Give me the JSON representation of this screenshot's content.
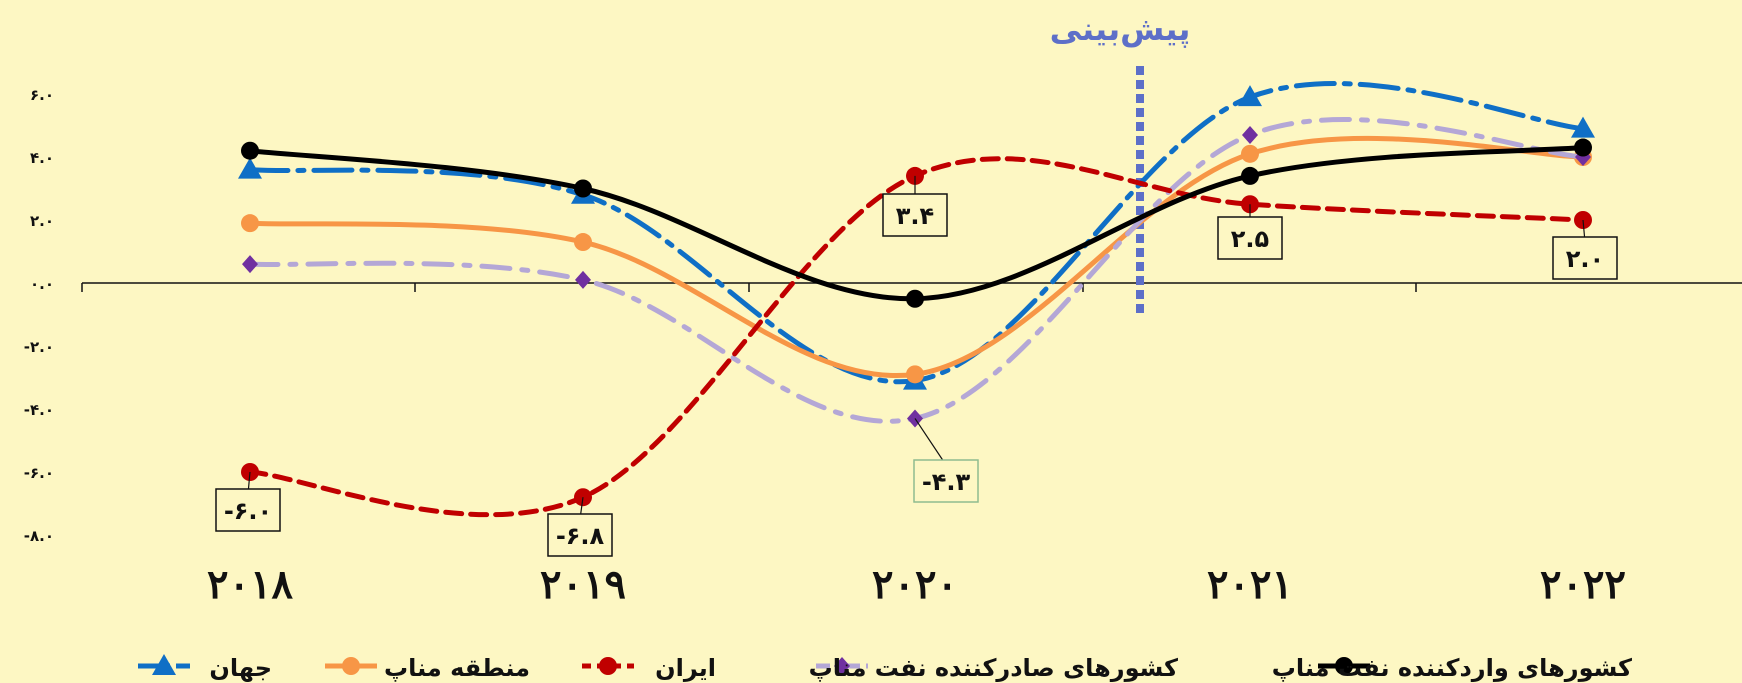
{
  "chart_data": {
    "type": "line",
    "categories": [
      "۲۰۱۸",
      "۲۰۱۹",
      "۲۰۲۰",
      "۲۰۲۱",
      "۲۰۲۲"
    ],
    "y_tick_labels": [
      "۶.۰",
      "۴.۰",
      "۲.۰",
      "۰.۰",
      "-۲.۰",
      "-۴.۰",
      "-۶.۰",
      "-۸.۰"
    ],
    "y_tick_values": [
      6,
      4,
      2,
      0,
      -2,
      -4,
      -6,
      -8
    ],
    "ylim": [
      -8.5,
      6.5
    ],
    "grid": false,
    "legend_position": "bottom",
    "annotation_forecast": "پیش‌بینی",
    "series": [
      {
        "name": "جهان",
        "values": [
          3.6,
          2.8,
          -3.1,
          5.9,
          4.9
        ],
        "color": "#0f6fc6",
        "marker": "triangle"
      },
      {
        "name": "منطقه مناپ",
        "values": [
          1.9,
          1.3,
          -2.9,
          4.1,
          4.0
        ],
        "color": "#f79646",
        "marker": "circle"
      },
      {
        "name": "ایران",
        "values": [
          -6.0,
          -6.8,
          3.4,
          2.5,
          2.0
        ],
        "color": "#c00000",
        "marker": "circle",
        "data_labels": [
          "-۶.۰",
          "-۶.۸",
          "۳.۴",
          "۲.۵",
          "۲.۰"
        ]
      },
      {
        "name": "کشورهای صادرکننده نفت مناپ",
        "values": [
          0.6,
          0.1,
          -4.3,
          4.7,
          4.0
        ],
        "color": "#b4a7d6",
        "marker": "diamond",
        "data_labels": [
          "",
          "",
          "-۴.۳",
          "",
          ""
        ]
      },
      {
        "name": "کشورهای واردکننده نفت مناپ",
        "values": [
          4.2,
          3.0,
          -0.5,
          3.4,
          4.3
        ],
        "color": "#000000",
        "marker": "circle"
      }
    ]
  }
}
